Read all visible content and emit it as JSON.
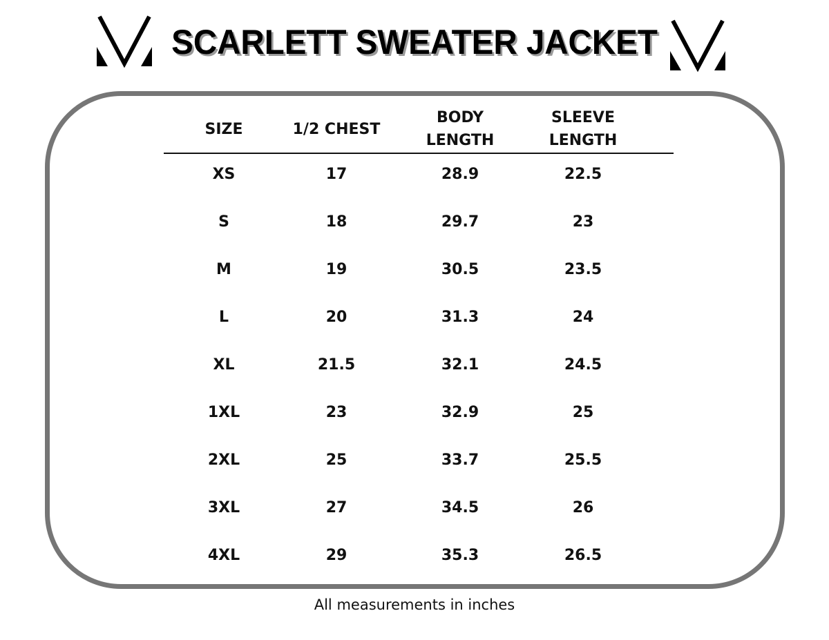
{
  "title": "SCARLETT SWEATER JACKET",
  "colors": {
    "frame": "#767676",
    "text": "#111111",
    "title_shadow": "#9a9a9a"
  },
  "logo_icon": "v-monogram-logo",
  "table": {
    "headers": [
      "SIZE",
      "1/2 CHEST",
      "BODY\nLENGTH",
      "SLEEVE\nLENGTH"
    ],
    "rows": [
      [
        "XS",
        "17",
        "28.9",
        "22.5"
      ],
      [
        "S",
        "18",
        "29.7",
        "23"
      ],
      [
        "M",
        "19",
        "30.5",
        "23.5"
      ],
      [
        "L",
        "20",
        "31.3",
        "24"
      ],
      [
        "XL",
        "21.5",
        "32.1",
        "24.5"
      ],
      [
        "1XL",
        "23",
        "32.9",
        "25"
      ],
      [
        "2XL",
        "25",
        "33.7",
        "25.5"
      ],
      [
        "3XL",
        "27",
        "34.5",
        "26"
      ],
      [
        "4XL",
        "29",
        "35.3",
        "26.5"
      ]
    ]
  },
  "footer": "All measurements in inches"
}
